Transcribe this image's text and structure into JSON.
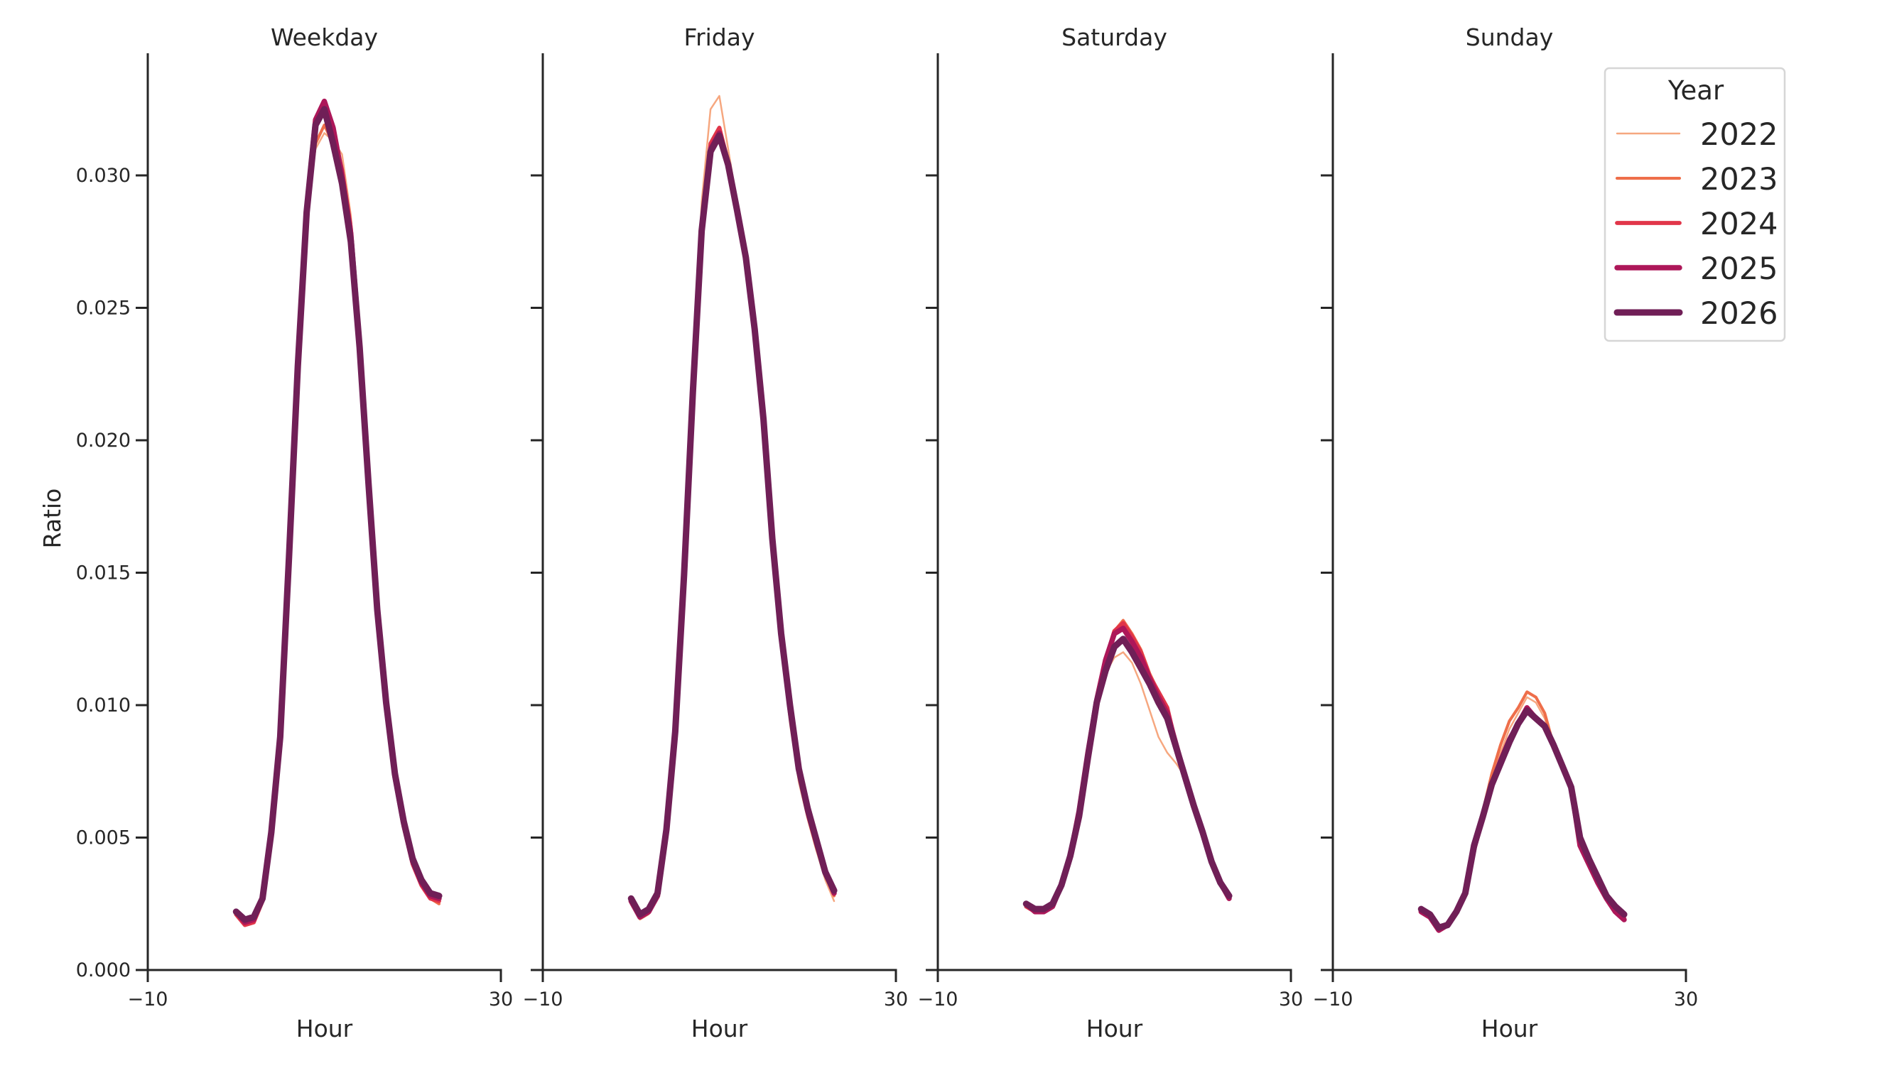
{
  "figure": {
    "ylabel": "Ratio",
    "xlabel": "Hour",
    "legend_title": "Year"
  },
  "chart_data": {
    "type": "line",
    "title": "",
    "xlabel": "Hour",
    "ylabel": "Ratio",
    "xlim": [
      -10,
      30
    ],
    "ylim": [
      0,
      0.0345
    ],
    "x_ticks": [
      -10,
      30
    ],
    "x_tick_labels": [
      "−10",
      "30"
    ],
    "y_ticks": [
      0.0,
      0.005,
      0.01,
      0.015,
      0.02,
      0.025,
      0.03
    ],
    "y_tick_labels": [
      "0.000",
      "0.005",
      "0.010",
      "0.015",
      "0.020",
      "0.025",
      "0.030"
    ],
    "grid": false,
    "legend": {
      "title": "Year",
      "position": "upper right",
      "entries": [
        {
          "label": "2022",
          "color": "#f6a77f",
          "width": 1.5
        },
        {
          "label": "2023",
          "color": "#ee6e4a",
          "width": 2.5
        },
        {
          "label": "2024",
          "color": "#e13549",
          "width": 3.5
        },
        {
          "label": "2025",
          "color": "#ad1759",
          "width": 4.5
        },
        {
          "label": "2026",
          "color": "#701f57",
          "width": 5.5
        }
      ]
    },
    "x": [
      0,
      1,
      2,
      3,
      4,
      5,
      6,
      7,
      8,
      9,
      10,
      11,
      12,
      13,
      14,
      15,
      16,
      17,
      18,
      19,
      20,
      21,
      22,
      23
    ],
    "panels": [
      {
        "title": "Weekday",
        "series": [
          {
            "name": "2022",
            "values": [
              0.0021,
              0.0018,
              0.0019,
              0.0026,
              0.0052,
              0.0088,
              0.0155,
              0.0228,
              0.0285,
              0.031,
              0.0316,
              0.0313,
              0.0308,
              0.0285,
              0.024,
              0.0185,
              0.0135,
              0.01,
              0.0073,
              0.0055,
              0.0041,
              0.0033,
              0.0028,
              0.0025
            ]
          },
          {
            "name": "2023",
            "values": [
              0.0022,
              0.0018,
              0.0019,
              0.0026,
              0.0052,
              0.0088,
              0.0155,
              0.0228,
              0.0286,
              0.0312,
              0.0319,
              0.0312,
              0.0303,
              0.0282,
              0.0238,
              0.0184,
              0.0134,
              0.0099,
              0.0072,
              0.0054,
              0.004,
              0.0032,
              0.0027,
              0.0025
            ]
          },
          {
            "name": "2024",
            "values": [
              0.0021,
              0.0017,
              0.0018,
              0.0026,
              0.0052,
              0.0088,
              0.0156,
              0.0229,
              0.0287,
              0.032,
              0.0327,
              0.0316,
              0.0302,
              0.028,
              0.0237,
              0.0184,
              0.0134,
              0.0099,
              0.0072,
              0.0054,
              0.004,
              0.0032,
              0.0027,
              0.0026
            ]
          },
          {
            "name": "2025",
            "values": [
              0.0022,
              0.0018,
              0.0019,
              0.0027,
              0.0052,
              0.0088,
              0.0156,
              0.0229,
              0.0287,
              0.0321,
              0.0328,
              0.0318,
              0.03,
              0.0278,
              0.0236,
              0.0184,
              0.0135,
              0.01,
              0.0073,
              0.0055,
              0.0041,
              0.0033,
              0.0028,
              0.0027
            ]
          },
          {
            "name": "2026",
            "values": [
              0.0022,
              0.0019,
              0.002,
              0.0027,
              0.0052,
              0.0088,
              0.0156,
              0.0228,
              0.0286,
              0.0319,
              0.0325,
              0.0312,
              0.0297,
              0.0275,
              0.0235,
              0.0184,
              0.0136,
              0.0101,
              0.0074,
              0.0056,
              0.0042,
              0.0034,
              0.0029,
              0.0028
            ]
          }
        ]
      },
      {
        "title": "Friday",
        "series": [
          {
            "name": "2022",
            "values": [
              0.0025,
              0.0019,
              0.0021,
              0.0027,
              0.0052,
              0.0088,
              0.015,
              0.0223,
              0.029,
              0.0325,
              0.033,
              0.031,
              0.029,
              0.0268,
              0.024,
              0.0205,
              0.016,
              0.0122,
              0.0093,
              0.0071,
              0.0057,
              0.0045,
              0.0034,
              0.0026
            ]
          },
          {
            "name": "2023",
            "values": [
              0.0026,
              0.002,
              0.0022,
              0.0028,
              0.0053,
              0.0089,
              0.0149,
              0.0219,
              0.028,
              0.0311,
              0.0317,
              0.0305,
              0.0288,
              0.0268,
              0.0241,
              0.0207,
              0.0162,
              0.0124,
              0.0096,
              0.0073,
              0.0058,
              0.0046,
              0.0036,
              0.0028
            ]
          },
          {
            "name": "2024",
            "values": [
              0.0026,
              0.002,
              0.0022,
              0.0028,
              0.0053,
              0.0089,
              0.0149,
              0.0219,
              0.028,
              0.0312,
              0.0318,
              0.0305,
              0.0288,
              0.0269,
              0.0242,
              0.0208,
              0.0163,
              0.0126,
              0.0098,
              0.0075,
              0.006,
              0.0048,
              0.0037,
              0.0029
            ]
          },
          {
            "name": "2025",
            "values": [
              0.0026,
              0.002,
              0.0022,
              0.0028,
              0.0053,
              0.0089,
              0.0149,
              0.0219,
              0.0279,
              0.031,
              0.0316,
              0.0304,
              0.0287,
              0.0269,
              0.0242,
              0.0208,
              0.0163,
              0.0127,
              0.0099,
              0.0076,
              0.006,
              0.0048,
              0.0037,
              0.0029
            ]
          },
          {
            "name": "2026",
            "values": [
              0.0027,
              0.0021,
              0.0023,
              0.0029,
              0.0053,
              0.009,
              0.0149,
              0.0218,
              0.0279,
              0.0309,
              0.0315,
              0.0304,
              0.0287,
              0.0269,
              0.0242,
              0.0208,
              0.0163,
              0.0127,
              0.01,
              0.0076,
              0.0061,
              0.0049,
              0.0037,
              0.003
            ]
          }
        ]
      },
      {
        "title": "Saturday",
        "series": [
          {
            "name": "2022",
            "values": [
              0.0025,
              0.0023,
              0.0023,
              0.0025,
              0.0032,
              0.0043,
              0.006,
              0.0082,
              0.0101,
              0.0112,
              0.0118,
              0.012,
              0.0116,
              0.0108,
              0.0098,
              0.0088,
              0.0082,
              0.0078,
              0.0073,
              0.0062,
              0.0052,
              0.0041,
              0.0033,
              0.0027
            ]
          },
          {
            "name": "2023",
            "values": [
              0.0024,
              0.0022,
              0.0022,
              0.0024,
              0.0032,
              0.0043,
              0.006,
              0.0082,
              0.0102,
              0.0117,
              0.0128,
              0.0132,
              0.0127,
              0.0121,
              0.0112,
              0.0105,
              0.0098,
              0.0085,
              0.0073,
              0.0062,
              0.0052,
              0.0041,
              0.0033,
              0.0027
            ]
          },
          {
            "name": "2024",
            "values": [
              0.0024,
              0.0022,
              0.0022,
              0.0024,
              0.0032,
              0.0043,
              0.006,
              0.0082,
              0.0102,
              0.0117,
              0.0128,
              0.0131,
              0.0126,
              0.012,
              0.0111,
              0.0105,
              0.0099,
              0.0085,
              0.0073,
              0.0062,
              0.0052,
              0.0041,
              0.0033,
              0.0027
            ]
          },
          {
            "name": "2025",
            "values": [
              0.0025,
              0.0022,
              0.0022,
              0.0024,
              0.0032,
              0.0043,
              0.006,
              0.0082,
              0.0102,
              0.0117,
              0.0127,
              0.0129,
              0.0124,
              0.0118,
              0.011,
              0.0103,
              0.0097,
              0.0085,
              0.0073,
              0.0062,
              0.0052,
              0.0041,
              0.0033,
              0.0027
            ]
          },
          {
            "name": "2026",
            "values": [
              0.0025,
              0.0023,
              0.0023,
              0.0025,
              0.0032,
              0.0043,
              0.0058,
              0.008,
              0.0101,
              0.0113,
              0.0122,
              0.0125,
              0.012,
              0.0114,
              0.0108,
              0.0101,
              0.0095,
              0.0084,
              0.0073,
              0.0062,
              0.0052,
              0.0041,
              0.0033,
              0.0028
            ]
          }
        ]
      },
      {
        "title": "Sunday",
        "series": [
          {
            "name": "2022",
            "values": [
              0.0023,
              0.0021,
              0.0016,
              0.0017,
              0.0022,
              0.003,
              0.0047,
              0.006,
              0.0072,
              0.0082,
              0.0091,
              0.0097,
              0.0103,
              0.0101,
              0.0095,
              0.0085,
              0.0076,
              0.0068,
              0.0048,
              0.0041,
              0.0034,
              0.0028,
              0.0024,
              0.0021
            ]
          },
          {
            "name": "2023",
            "values": [
              0.0023,
              0.0021,
              0.0016,
              0.0017,
              0.0022,
              0.003,
              0.0047,
              0.006,
              0.0074,
              0.0085,
              0.0094,
              0.0099,
              0.0105,
              0.0103,
              0.0097,
              0.0085,
              0.0076,
              0.0068,
              0.0048,
              0.0041,
              0.0034,
              0.0028,
              0.0024,
              0.0021
            ]
          },
          {
            "name": "2024",
            "values": [
              0.0022,
              0.002,
              0.0015,
              0.0017,
              0.0022,
              0.0029,
              0.0046,
              0.0058,
              0.007,
              0.0079,
              0.0087,
              0.0093,
              0.0099,
              0.0095,
              0.0092,
              0.0085,
              0.0077,
              0.0069,
              0.0048,
              0.004,
              0.0033,
              0.0027,
              0.0023,
              0.002
            ]
          },
          {
            "name": "2025",
            "values": [
              0.0022,
              0.002,
              0.0015,
              0.0017,
              0.0022,
              0.0029,
              0.0046,
              0.0058,
              0.007,
              0.0079,
              0.0087,
              0.0093,
              0.0099,
              0.0095,
              0.0092,
              0.0085,
              0.0077,
              0.0069,
              0.0047,
              0.004,
              0.0033,
              0.0027,
              0.0022,
              0.0019
            ]
          },
          {
            "name": "2026",
            "values": [
              0.0023,
              0.0021,
              0.0016,
              0.0017,
              0.0022,
              0.0029,
              0.0047,
              0.0058,
              0.007,
              0.0078,
              0.0086,
              0.0093,
              0.0098,
              0.0095,
              0.0092,
              0.0085,
              0.0077,
              0.0069,
              0.005,
              0.0042,
              0.0035,
              0.0028,
              0.0024,
              0.0021
            ]
          }
        ]
      }
    ]
  }
}
